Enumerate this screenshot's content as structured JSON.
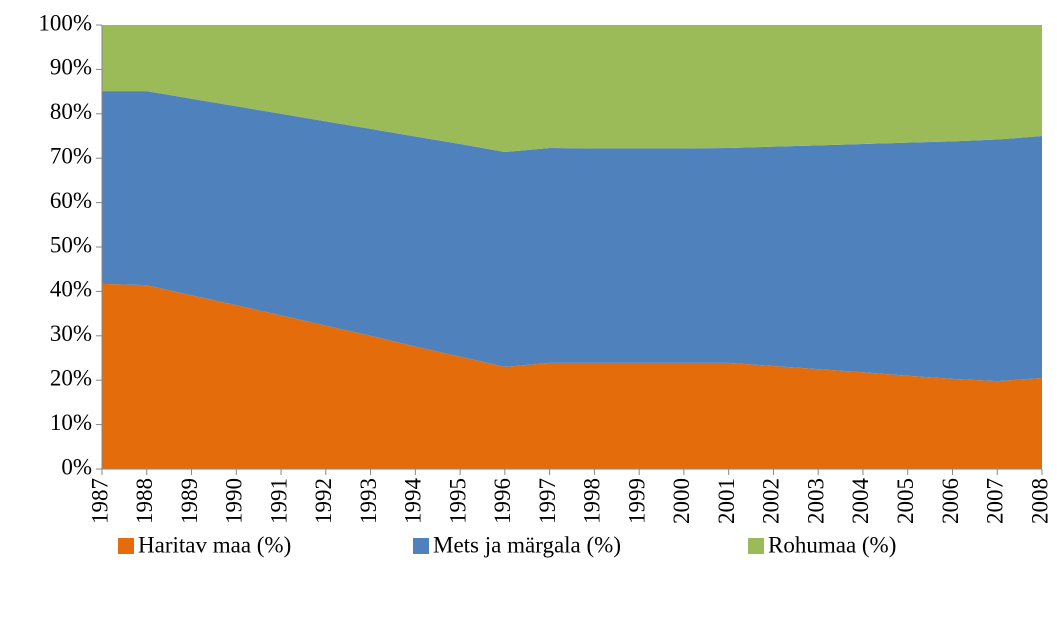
{
  "chart_data": {
    "type": "stacked_area_100",
    "categories": [
      "1987",
      "1988",
      "1989",
      "1990",
      "1991",
      "1992",
      "1993",
      "1994",
      "1995",
      "1996",
      "1997",
      "1998",
      "1999",
      "2000",
      "2001",
      "2002",
      "2003",
      "2004",
      "2005",
      "2006",
      "2007",
      "2008"
    ],
    "series": [
      {
        "name": "Haritav maa (%)",
        "color": "#e46c0a",
        "values": [
          41.7,
          41.4,
          39.1,
          36.9,
          34.6,
          32.3,
          30.0,
          27.6,
          25.3,
          23.0,
          23.9,
          23.9,
          23.9,
          23.9,
          23.9,
          23.2,
          22.5,
          21.8,
          21.0,
          20.3,
          19.8,
          20.5
        ]
      },
      {
        "name": "Mets ja märgala (%)",
        "color": "#4f81bd",
        "values": [
          43.4,
          43.7,
          44.3,
          44.8,
          45.4,
          46.0,
          46.6,
          47.3,
          47.9,
          48.4,
          48.4,
          48.3,
          48.3,
          48.3,
          48.4,
          49.4,
          50.4,
          51.4,
          52.5,
          53.5,
          54.4,
          54.5
        ]
      },
      {
        "name": "Rohumaa (%)",
        "color": "#9bbb59",
        "values": [
          14.9,
          14.9,
          16.6,
          18.3,
          20.0,
          21.7,
          23.4,
          25.1,
          26.8,
          28.6,
          27.7,
          27.8,
          27.8,
          27.8,
          27.7,
          27.4,
          27.1,
          26.8,
          26.5,
          26.2,
          25.8,
          25.0
        ]
      }
    ],
    "ylim": [
      0,
      100
    ],
    "yticks": [
      {
        "value": 0,
        "label": "0%"
      },
      {
        "value": 10,
        "label": "10%"
      },
      {
        "value": 20,
        "label": "20%"
      },
      {
        "value": 30,
        "label": "30%"
      },
      {
        "value": 40,
        "label": "40%"
      },
      {
        "value": 50,
        "label": "50%"
      },
      {
        "value": 60,
        "label": "60%"
      },
      {
        "value": 70,
        "label": "70%"
      },
      {
        "value": 80,
        "label": "80%"
      },
      {
        "value": 90,
        "label": "90%"
      },
      {
        "value": 100,
        "label": "100%"
      }
    ],
    "legend": "bottom"
  }
}
